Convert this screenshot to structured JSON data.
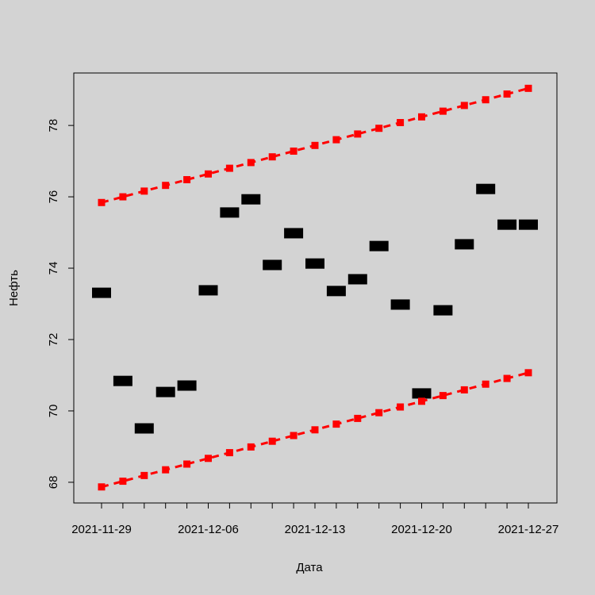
{
  "chart_data": {
    "type": "scatter",
    "x_label": "Дата",
    "y_label": "Нефть",
    "categories": [
      "2021-11-29",
      null,
      null,
      null,
      null,
      "2021-12-06",
      null,
      null,
      null,
      null,
      "2021-12-13",
      null,
      null,
      null,
      null,
      "2021-12-20",
      null,
      null,
      null,
      null,
      "2021-12-27"
    ],
    "series": [
      {
        "color": "#000000",
        "style": "points",
        "values": [
          73.31,
          70.84,
          69.51,
          70.53,
          70.71,
          73.38,
          75.56,
          75.93,
          74.09,
          74.98,
          74.13,
          73.36,
          73.69,
          74.62,
          72.98,
          70.49,
          72.82,
          74.67,
          76.22,
          75.22,
          75.22
        ]
      },
      {
        "color": "#ff0000",
        "style": "dashed",
        "values": [
          75.84,
          76.0,
          76.16,
          76.32,
          76.48,
          76.64,
          76.8,
          76.96,
          77.12,
          77.28,
          77.44,
          77.6,
          77.76,
          77.92,
          78.08,
          78.24,
          78.4,
          78.56,
          78.72,
          78.88,
          79.04
        ]
      },
      {
        "color": "#ff0000",
        "style": "dashed",
        "values": [
          67.87,
          68.03,
          68.19,
          68.35,
          68.51,
          68.67,
          68.83,
          68.99,
          69.15,
          69.31,
          69.47,
          69.63,
          69.79,
          69.95,
          70.11,
          70.27,
          70.43,
          70.59,
          70.75,
          70.91,
          71.07
        ]
      }
    ],
    "ylim": [
      67.42,
      79.47
    ],
    "yticks": [
      68,
      70,
      72,
      74,
      76,
      78
    ]
  }
}
